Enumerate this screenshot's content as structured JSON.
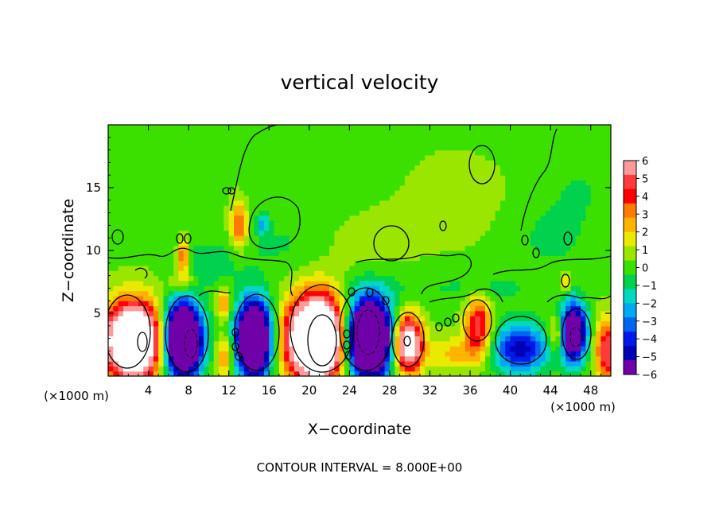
{
  "chart_data": {
    "type": "heatmap",
    "title": "vertical velocity",
    "xlabel": "X−coordinate",
    "ylabel": "Z−coordinate",
    "x_unit": "(×1000 m)",
    "y_unit": "(×1000 m)",
    "footer": "CONTOUR INTERVAL = 8.000E+00",
    "xlim": [
      0,
      50
    ],
    "ylim": [
      0,
      20
    ],
    "x_ticks": [
      4,
      8,
      12,
      16,
      20,
      24,
      28,
      32,
      36,
      40,
      44,
      48
    ],
    "y_ticks": [
      5,
      10,
      15
    ],
    "colorbar": {
      "ticks": [
        "6",
        "5",
        "4",
        "3",
        "2",
        "1",
        "0",
        "−1",
        "−2",
        "−3",
        "−4",
        "−5",
        "−6"
      ],
      "colors": [
        "#ff9a9a",
        "#ff3a3a",
        "#ff0000",
        "#ff7a00",
        "#ffb400",
        "#eaea00",
        "#9ae600",
        "#3ce000",
        "#00d24e",
        "#00d8c0",
        "#00aaf0",
        "#0064f0",
        "#0018e8",
        "#0000b4",
        "#7000a8"
      ],
      "range": [
        -6,
        6
      ]
    },
    "field": {
      "background": 0.2,
      "anomalies": [
        {
          "x": 2.5,
          "z": 2.8,
          "sx": 2.0,
          "sz": 2.1,
          "w": 12
        },
        {
          "x": 7.4,
          "z": 2.9,
          "sx": 1.3,
          "sz": 2.0,
          "w": -13
        },
        {
          "x": 11.6,
          "z": 1.6,
          "sx": 0.6,
          "sz": 1.2,
          "w": 3
        },
        {
          "x": 11.5,
          "z": 5.8,
          "sx": 0.5,
          "sz": 0.8,
          "w": 3
        },
        {
          "x": 14.5,
          "z": 3.0,
          "sx": 1.2,
          "sz": 2.1,
          "w": -12
        },
        {
          "x": 20.8,
          "z": 3.0,
          "sx": 2.1,
          "sz": 2.3,
          "w": 14
        },
        {
          "x": 25.8,
          "z": 3.0,
          "sx": 1.7,
          "sz": 2.2,
          "w": -13
        },
        {
          "x": 29.8,
          "z": 2.6,
          "sx": 1.0,
          "sz": 1.6,
          "w": 9
        },
        {
          "x": 36.8,
          "z": 4.0,
          "sx": 0.9,
          "sz": 1.6,
          "w": 5
        },
        {
          "x": 41.0,
          "z": 2.2,
          "sx": 2.0,
          "sz": 1.4,
          "w": -5
        },
        {
          "x": 44.6,
          "z": 3.3,
          "sx": 0.6,
          "sz": 1.0,
          "w": 3
        },
        {
          "x": 46.3,
          "z": 3.5,
          "sx": 0.9,
          "sz": 1.6,
          "w": -9
        },
        {
          "x": 49.6,
          "z": 2.0,
          "sx": 0.8,
          "sz": 1.8,
          "w": 5
        },
        {
          "x": 34.5,
          "z": 1.8,
          "sx": 2.0,
          "sz": 1.0,
          "w": 2.0
        },
        {
          "x": 13.0,
          "z": 12.0,
          "sx": 0.6,
          "sz": 1.3,
          "w": 3.8
        },
        {
          "x": 15.4,
          "z": 12.2,
          "sx": 0.4,
          "sz": 0.6,
          "w": -2.6
        },
        {
          "x": 7.5,
          "z": 9.5,
          "sx": 0.4,
          "sz": 0.9,
          "w": 4
        },
        {
          "x": 7.4,
          "z": 7.6,
          "sx": 0.9,
          "sz": 0.6,
          "w": 2
        },
        {
          "x": 45.5,
          "z": 7.6,
          "sx": 0.3,
          "sz": 0.5,
          "w": 3
        },
        {
          "x": 10.0,
          "z": 9.0,
          "sx": 2.0,
          "sz": 1.2,
          "w": -1.3
        },
        {
          "x": 17.0,
          "z": 10.5,
          "sx": 3.0,
          "sz": 1.5,
          "w": -0.7
        },
        {
          "x": 38.0,
          "z": 7.0,
          "sx": 3.0,
          "sz": 1.0,
          "w": -0.8
        },
        {
          "x": 30.0,
          "z": 7.2,
          "sx": 4.0,
          "sz": 1.0,
          "w": -0.6
        },
        {
          "x": 44.0,
          "z": 11.0,
          "sx": 3.0,
          "sz": 2.0,
          "w": -0.8
        },
        {
          "x": 47.0,
          "z": 15.0,
          "sx": 3.0,
          "sz": 2.0,
          "w": -0.6
        },
        {
          "x": 22.0,
          "z": 16.0,
          "sx": 4.0,
          "sz": 2.0,
          "w": -0.6
        },
        {
          "x": 26.0,
          "z": 10.5,
          "sx": 3.0,
          "sz": 2.0,
          "w": 0.6
        },
        {
          "x": 34.0,
          "z": 14.0,
          "sx": 5.0,
          "sz": 3.0,
          "w": 0.5
        }
      ]
    }
  }
}
